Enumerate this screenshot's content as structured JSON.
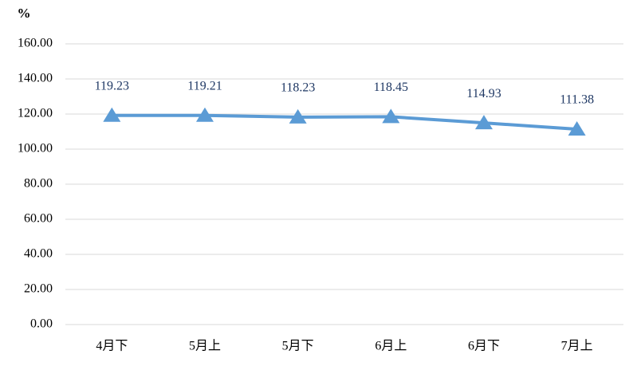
{
  "chart_data": {
    "type": "line",
    "y_label": "%",
    "categories": [
      "4月下",
      "5月上",
      "5月下",
      "6月上",
      "6月下",
      "7月上"
    ],
    "values": [
      119.23,
      119.21,
      118.23,
      118.45,
      114.93,
      111.38
    ],
    "color": "#5b9bd5",
    "label_color": "#1f3864",
    "ylim": [
      0,
      160
    ],
    "yticks": [
      {
        "value": 0,
        "label": "0.00"
      },
      {
        "value": 20,
        "label": "20.00"
      },
      {
        "value": 40,
        "label": "40.00"
      },
      {
        "value": 60,
        "label": "60.00"
      },
      {
        "value": 80,
        "label": "80.00"
      },
      {
        "value": 100,
        "label": "100.00"
      },
      {
        "value": 120,
        "label": "120.00"
      },
      {
        "value": 140,
        "label": "140.00"
      },
      {
        "value": 160,
        "label": "160.00"
      }
    ],
    "grid": true
  }
}
